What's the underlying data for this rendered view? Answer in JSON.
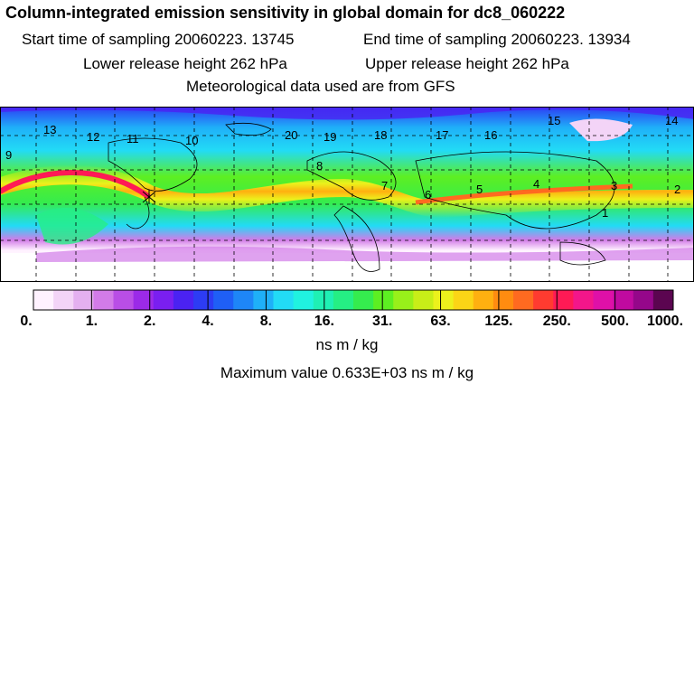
{
  "header": {
    "title": "Column-integrated emission sensitivity in global domain for dc8_060222",
    "start_label": "Start time of sampling 20060223. 13745",
    "end_label": "End time of sampling 20060223. 13934",
    "lower_label": "Lower release height  262 hPa",
    "upper_label": "Upper release height  262 hPa",
    "met_label": "Meteorological data used are from GFS"
  },
  "map": {
    "trajectory_labels": [
      "13",
      "12",
      "11",
      "10",
      "20",
      "19",
      "18",
      "17",
      "16",
      "15",
      "14",
      "9",
      "8",
      "7",
      "6",
      "5",
      "4",
      "3",
      "2",
      "1"
    ]
  },
  "colorbar": {
    "tick_labels": [
      "0.",
      "1.",
      "2.",
      "4.",
      "8.",
      "16.",
      "31.",
      "63.",
      "125.",
      "250.",
      "500.",
      "1000."
    ],
    "colors": [
      "#fff2ff",
      "#f3d4f7",
      "#e4b0f0",
      "#d27be8",
      "#b94ee6",
      "#9b2ae8",
      "#7a1ff0",
      "#4b22f2",
      "#2d3cf4",
      "#1f5ff6",
      "#1e86f7",
      "#1fb0f8",
      "#22dbf6",
      "#20f2e0",
      "#1ff0b4",
      "#25ef84",
      "#35ec4e",
      "#5def22",
      "#98f01a",
      "#c8ee18",
      "#ecf11c",
      "#fbd516",
      "#ffb010",
      "#ff8c10",
      "#ff6a20",
      "#ff3b30",
      "#ff1a55",
      "#f3168a",
      "#df10a8",
      "#c00aa0",
      "#95078a",
      "#5b0550"
    ],
    "unit_label": "ns m / kg",
    "max_label": "Maximum value  0.633E+03 ns m / kg"
  }
}
